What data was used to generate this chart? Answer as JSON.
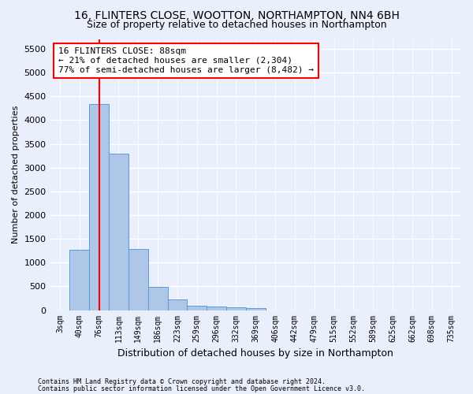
{
  "title1": "16, FLINTERS CLOSE, WOOTTON, NORTHAMPTON, NN4 6BH",
  "title2": "Size of property relative to detached houses in Northampton",
  "xlabel": "Distribution of detached houses by size in Northampton",
  "ylabel": "Number of detached properties",
  "footnote1": "Contains HM Land Registry data © Crown copyright and database right 2024.",
  "footnote2": "Contains public sector information licensed under the Open Government Licence v3.0.",
  "bar_labels": [
    "3sqm",
    "40sqm",
    "76sqm",
    "113sqm",
    "149sqm",
    "186sqm",
    "223sqm",
    "259sqm",
    "296sqm",
    "332sqm",
    "369sqm",
    "406sqm",
    "442sqm",
    "479sqm",
    "515sqm",
    "552sqm",
    "589sqm",
    "625sqm",
    "662sqm",
    "698sqm",
    "735sqm"
  ],
  "bar_values": [
    0,
    1270,
    4340,
    3300,
    1280,
    490,
    220,
    100,
    75,
    60,
    50,
    0,
    0,
    0,
    0,
    0,
    0,
    0,
    0,
    0,
    0
  ],
  "bar_color": "#aec6e8",
  "bar_edge_color": "#5b9bd5",
  "vline_x": 2.0,
  "vline_color": "red",
  "annotation_text": "16 FLINTERS CLOSE: 88sqm\n← 21% of detached houses are smaller (2,304)\n77% of semi-detached houses are larger (8,482) →",
  "annotation_box_color": "white",
  "annotation_box_edge_color": "red",
  "ylim": [
    0,
    5700
  ],
  "yticks": [
    0,
    500,
    1000,
    1500,
    2000,
    2500,
    3000,
    3500,
    4000,
    4500,
    5000,
    5500
  ],
  "bg_color": "#eaf0fb",
  "plot_bg_color": "#eaf0fb",
  "grid_color": "white",
  "title_fontsize": 10,
  "subtitle_fontsize": 9
}
